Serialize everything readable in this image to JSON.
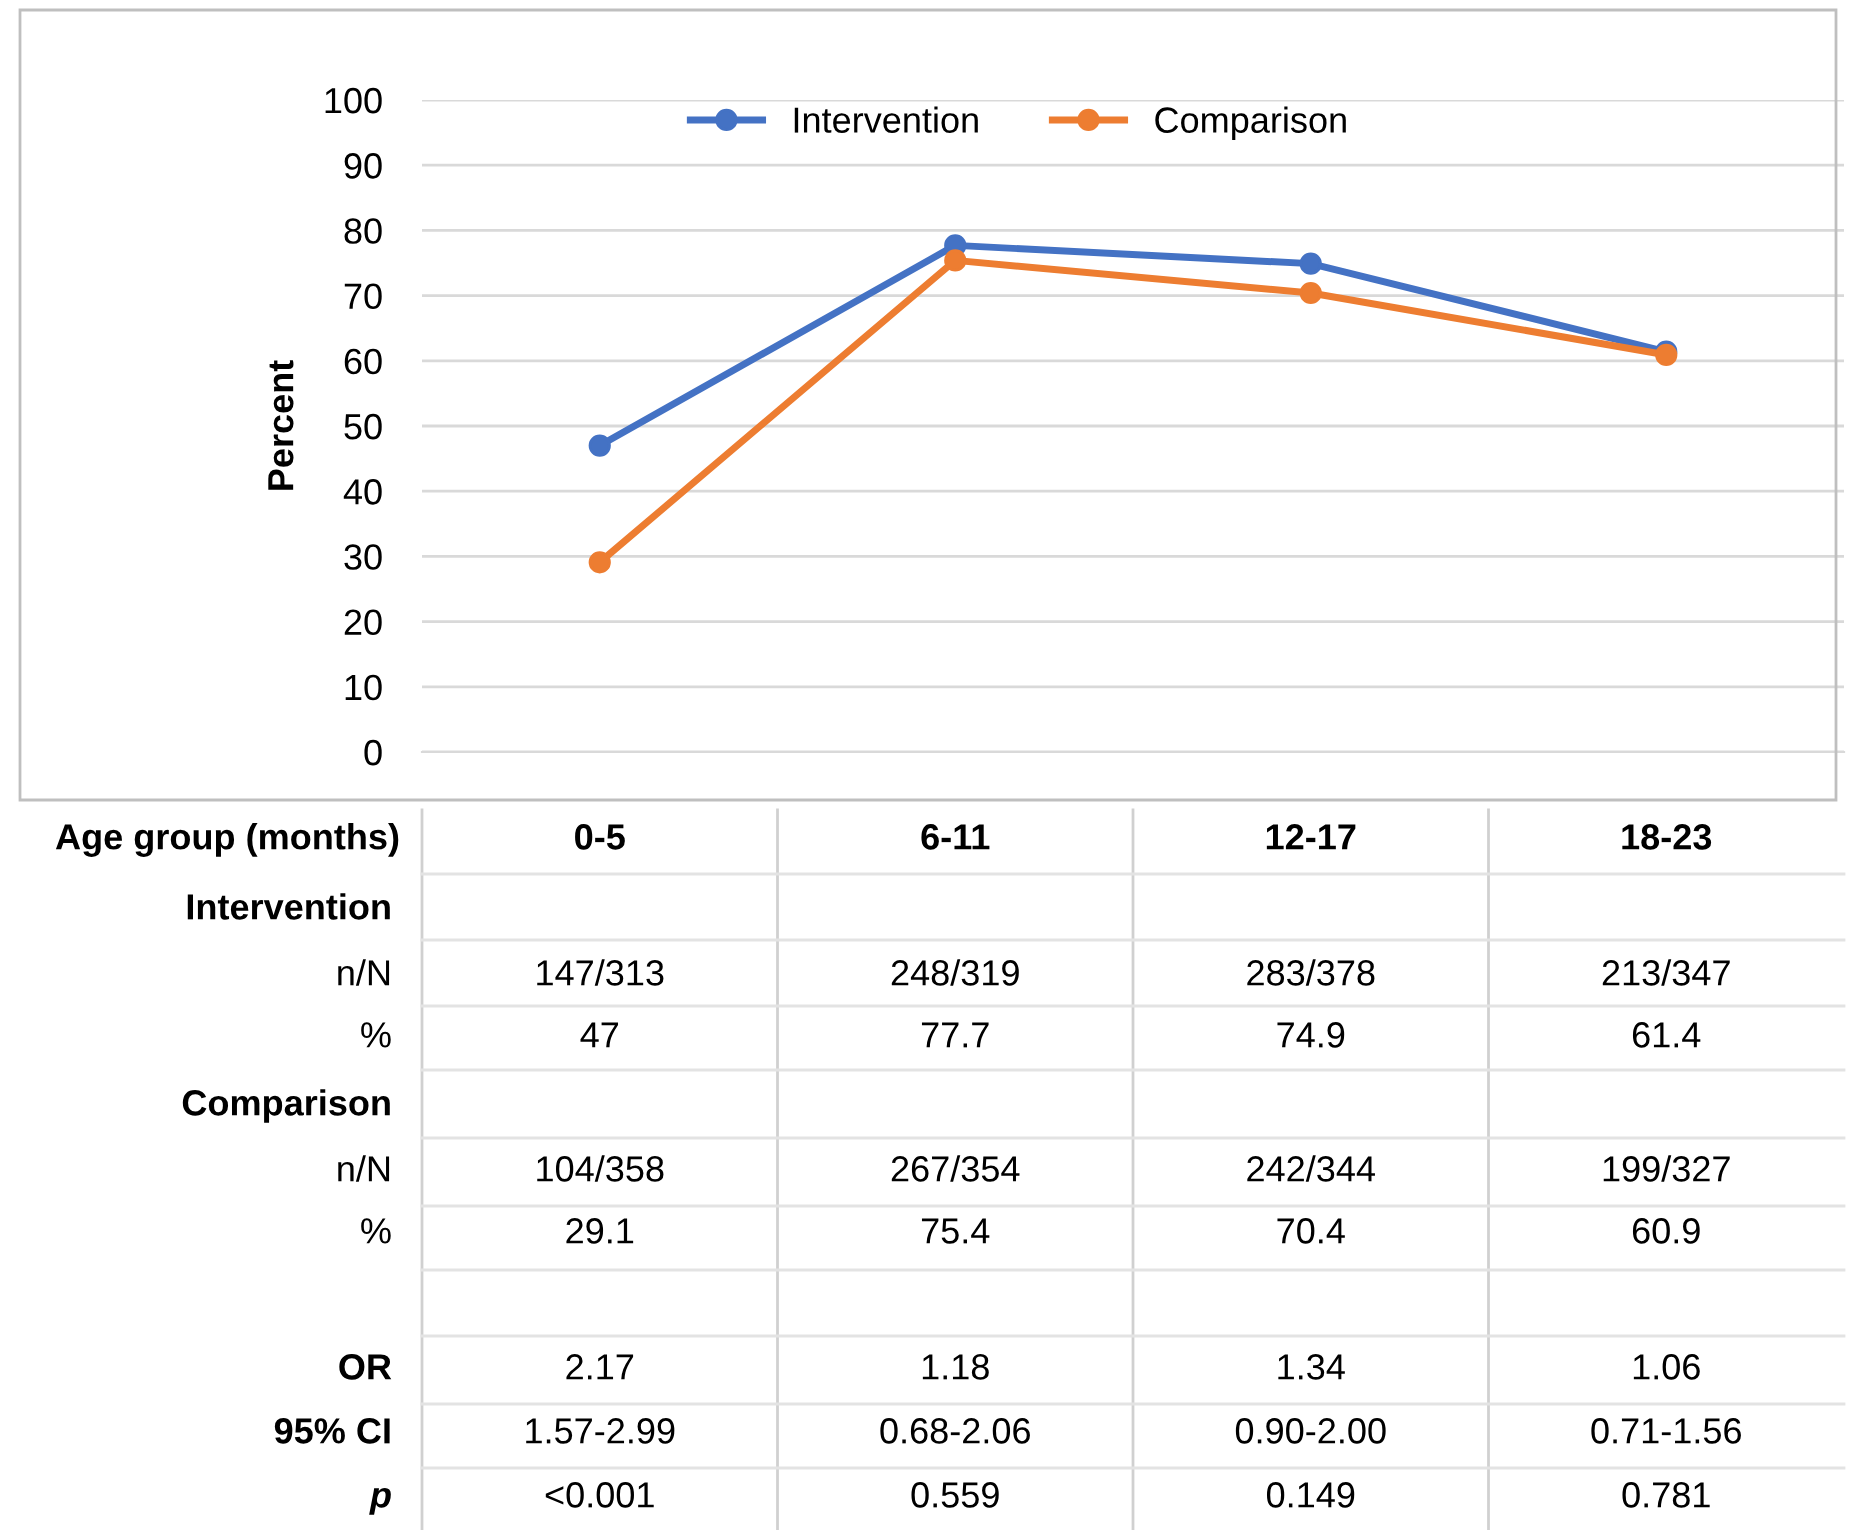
{
  "chart_data": {
    "type": "line",
    "ylabel": "Percent",
    "xlabel": "Age group (months)",
    "categories": [
      "0-5",
      "6-11",
      "12-17",
      "18-23"
    ],
    "series": [
      {
        "name": "Intervention",
        "color": "#4472c4",
        "values": [
          47,
          77.7,
          74.9,
          61.4
        ],
        "value_labels": [
          "47",
          "77.7",
          "74.9",
          "61.4"
        ]
      },
      {
        "name": "Comparison",
        "color": "#ed7d31",
        "values": [
          29.1,
          75.4,
          70.4,
          60.9
        ],
        "value_labels": [
          "29.1",
          "75.4",
          "70.4",
          "60.9"
        ]
      }
    ],
    "annotations": [
      "n/N",
      "147/313",
      "248/319",
      "283/378",
      "213/347",
      "%",
      "n/N",
      "104/358",
      "267/354",
      "242/344",
      "199/327",
      "%",
      "OR",
      "2.17",
      "1.18",
      "1.34",
      "1.06",
      "95% CI",
      "1.57-2.99",
      "0.68-2.06",
      "0.90-2.00",
      "0.71-1.56",
      "p",
      "<0.001",
      "0.559",
      "0.149",
      "0.781"
    ],
    "ylim": [
      0,
      100
    ],
    "yticks": [
      0,
      10,
      20,
      30,
      40,
      50,
      60,
      70,
      80,
      90,
      100
    ],
    "grid": "y",
    "legend": "top",
    "marker": "circle",
    "line_style": "solid"
  }
}
